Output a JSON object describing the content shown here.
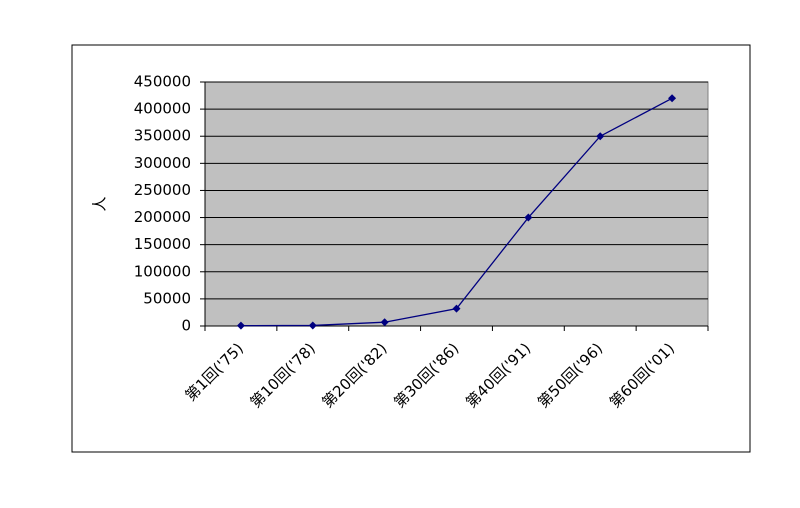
{
  "chart_data": {
    "type": "line",
    "y_label": "人",
    "categories": [
      "第1回('75)",
      "第10回('78)",
      "第20回('82)",
      "第30回('86)",
      "第40回('91)",
      "第50回('96)",
      "第60回('01)"
    ],
    "series": [
      {
        "color": "#000080",
        "values": [
          700,
          1000,
          7000,
          32000,
          200000,
          350000,
          420000
        ]
      }
    ],
    "ylim": [
      0,
      450000
    ],
    "yticks": [
      0,
      50000,
      100000,
      150000,
      200000,
      250000,
      300000,
      350000,
      400000,
      450000
    ],
    "grid": true,
    "plot_background": "#c0c0c0"
  }
}
